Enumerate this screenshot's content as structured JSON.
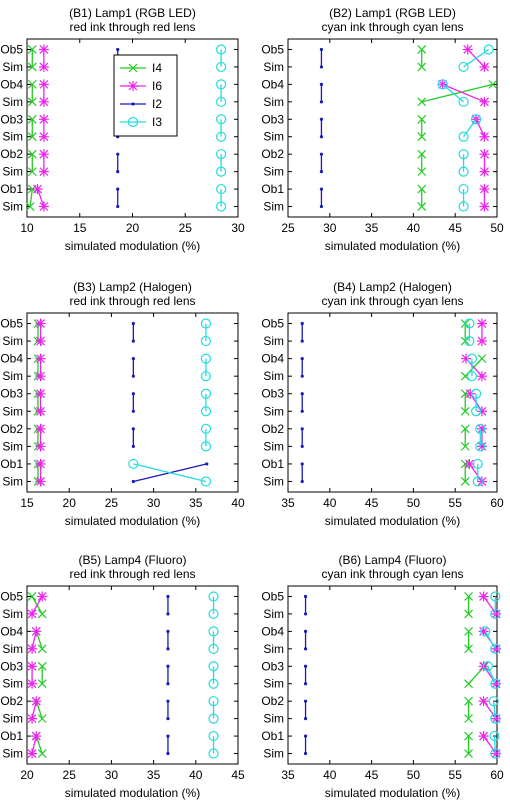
{
  "line_labels": {
    "I4": "I4",
    "I6": "I6",
    "I2": "I2",
    "I3": "I3"
  },
  "colors": {
    "I4": "#22cc22",
    "I6": "#ee22ee",
    "I2": "#1a1ab8",
    "I3": "#22dddd"
  },
  "chart_data": [
    {
      "type": "line",
      "title": "(B1) Lamp1 (RGB LED)",
      "subtitle": "red ink through red lens",
      "xlabel": "simulated modulation (%)",
      "xlim": [
        10,
        30
      ],
      "xticks": [
        10,
        15,
        20,
        25,
        30
      ],
      "categories": [
        "Ob5",
        "Sim",
        "Ob4",
        "Sim",
        "Ob3",
        "Sim",
        "Ob2",
        "Sim",
        "Ob1",
        "Sim"
      ],
      "legend": "top-center",
      "series": [
        {
          "name": "I4",
          "values": [
            10.5,
            10.5,
            10.5,
            10.5,
            10.5,
            10.5,
            10.5,
            10.5,
            10.5,
            10.3
          ]
        },
        {
          "name": "I6",
          "values": [
            11.6,
            11.6,
            11.6,
            11.6,
            11.6,
            11.6,
            11.6,
            11.6,
            11.0,
            11.6
          ]
        },
        {
          "name": "I2",
          "values": [
            18.6,
            18.6,
            18.6,
            18.6,
            18.6,
            18.6,
            18.6,
            18.6,
            18.6,
            18.6
          ]
        },
        {
          "name": "I3",
          "values": [
            28.4,
            28.4,
            28.4,
            28.4,
            28.4,
            28.4,
            28.4,
            28.4,
            28.4,
            28.4
          ]
        }
      ]
    },
    {
      "type": "line",
      "title": "(B2) Lamp1 (RGB LED)",
      "subtitle": "cyan ink through cyan lens",
      "xlabel": "simulated modulation (%)",
      "xlim": [
        25,
        50
      ],
      "xticks": [
        25,
        30,
        35,
        40,
        45,
        50
      ],
      "categories": [
        "Ob5",
        "Sim",
        "Ob4",
        "Sim",
        "Ob3",
        "Sim",
        "Ob2",
        "Sim",
        "Ob1",
        "Sim"
      ],
      "series": [
        {
          "name": "I4",
          "values": [
            41,
            41,
            49.5,
            41,
            41,
            41,
            41,
            41,
            41,
            41
          ]
        },
        {
          "name": "I6",
          "values": [
            46.5,
            48.5,
            43.5,
            48.5,
            47.5,
            48.5,
            48.5,
            48.5,
            48.5,
            48.5
          ]
        },
        {
          "name": "I2",
          "values": [
            29,
            29,
            29,
            29,
            29,
            29,
            29,
            29,
            29,
            29
          ]
        },
        {
          "name": "I3",
          "values": [
            49,
            46,
            43.5,
            46,
            47.5,
            46,
            46,
            46,
            46,
            46
          ]
        }
      ]
    },
    {
      "type": "line",
      "title": "(B3) Lamp2 (Halogen)",
      "subtitle": "red ink through red lens",
      "xlabel": "simulated modulation (%)",
      "xlim": [
        15,
        40
      ],
      "xticks": [
        15,
        20,
        25,
        30,
        35,
        40
      ],
      "categories": [
        "Ob5",
        "Sim",
        "Ob4",
        "Sim",
        "Ob3",
        "Sim",
        "Ob2",
        "Sim",
        "Ob1",
        "Sim"
      ],
      "series": [
        {
          "name": "I4",
          "values": [
            16.3,
            16.3,
            16.3,
            16.3,
            16.3,
            16.3,
            16.3,
            16.3,
            16.3,
            16.3
          ]
        },
        {
          "name": "I6",
          "values": [
            16.6,
            16.6,
            16.6,
            16.6,
            16.6,
            16.6,
            16.6,
            16.6,
            16.6,
            16.6
          ]
        },
        {
          "name": "I2",
          "values": [
            27.6,
            27.6,
            27.6,
            27.6,
            27.6,
            27.6,
            27.6,
            27.6,
            36.3,
            27.6
          ]
        },
        {
          "name": "I3",
          "values": [
            36.2,
            36.2,
            36.2,
            36.2,
            36.2,
            36.2,
            36.2,
            36.2,
            27.6,
            36.2
          ]
        }
      ]
    },
    {
      "type": "line",
      "title": "(B4) Lamp2 (Halogen)",
      "subtitle": "cyan ink through cyan lens",
      "xlabel": "simulated modulation (%)",
      "xlim": [
        35,
        60
      ],
      "xticks": [
        35,
        40,
        45,
        50,
        55,
        60
      ],
      "categories": [
        "Ob5",
        "Sim",
        "Ob4",
        "Sim",
        "Ob3",
        "Sim",
        "Ob2",
        "Sim",
        "Ob1",
        "Sim"
      ],
      "series": [
        {
          "name": "I4",
          "values": [
            56.2,
            56.2,
            58.2,
            56.2,
            56.2,
            56.2,
            56.2,
            56.2,
            56.2,
            56.2
          ]
        },
        {
          "name": "I6",
          "values": [
            58.2,
            58.2,
            56.3,
            58.2,
            56.8,
            58.2,
            58.2,
            58.2,
            56.7,
            58.2
          ]
        },
        {
          "name": "I2",
          "values": [
            36.7,
            36.7,
            36.7,
            36.7,
            36.7,
            36.7,
            36.7,
            36.7,
            36.7,
            36.7
          ]
        },
        {
          "name": "I3",
          "values": [
            56.7,
            56.7,
            57.0,
            57.0,
            57.5,
            57.5,
            58.0,
            58.0,
            57.7,
            57.7
          ]
        }
      ]
    },
    {
      "type": "line",
      "title": "(B5) Lamp4 (Fluoro)",
      "subtitle": "red ink through red lens",
      "xlabel": "simulated modulation (%)",
      "xlim": [
        20,
        45
      ],
      "xticks": [
        20,
        25,
        30,
        35,
        40,
        45
      ],
      "categories": [
        "Ob5",
        "Sim",
        "Ob4",
        "Sim",
        "Ob3",
        "Sim",
        "Ob2",
        "Sim",
        "Ob1",
        "Sim"
      ],
      "series": [
        {
          "name": "I4",
          "values": [
            20.6,
            21.8,
            21.1,
            21.8,
            21.8,
            21.8,
            21.1,
            21.8,
            21.1,
            21.8
          ]
        },
        {
          "name": "I6",
          "values": [
            21.8,
            20.6,
            21.1,
            20.6,
            20.6,
            20.6,
            21.1,
            20.6,
            21.1,
            20.6
          ]
        },
        {
          "name": "I2",
          "values": [
            36.7,
            36.7,
            36.7,
            36.7,
            36.7,
            36.7,
            36.7,
            36.7,
            36.7,
            36.7
          ]
        },
        {
          "name": "I3",
          "values": [
            42.1,
            42.1,
            42.1,
            42.1,
            42.1,
            42.1,
            42.1,
            42.1,
            42.1,
            42.1
          ]
        }
      ]
    },
    {
      "type": "line",
      "title": "(B6) Lamp4 (Fluoro)",
      "subtitle": "cyan ink through cyan lens",
      "xlabel": "simulated modulation (%)",
      "xlim": [
        35,
        60
      ],
      "xticks": [
        35,
        40,
        45,
        50,
        55,
        60
      ],
      "categories": [
        "Ob5",
        "Sim",
        "Ob4",
        "Sim",
        "Ob3",
        "Sim",
        "Ob2",
        "Sim",
        "Ob1",
        "Sim"
      ],
      "series": [
        {
          "name": "I4",
          "values": [
            56.6,
            56.6,
            56.6,
            56.6,
            58.5,
            56.6,
            56.6,
            56.6,
            56.6,
            56.6
          ]
        },
        {
          "name": "I6",
          "values": [
            58.4,
            59.9,
            58.4,
            59.9,
            58.4,
            59.9,
            58.4,
            59.9,
            58.4,
            59.9
          ]
        },
        {
          "name": "I2",
          "values": [
            37.1,
            37.1,
            37.1,
            37.1,
            37.1,
            37.1,
            37.1,
            37.1,
            37.1,
            37.1
          ]
        },
        {
          "name": "I3",
          "values": [
            59.8,
            59.8,
            58.6,
            59.8,
            58.9,
            59.8,
            59.6,
            59.8,
            59.7,
            59.8
          ]
        }
      ]
    }
  ]
}
